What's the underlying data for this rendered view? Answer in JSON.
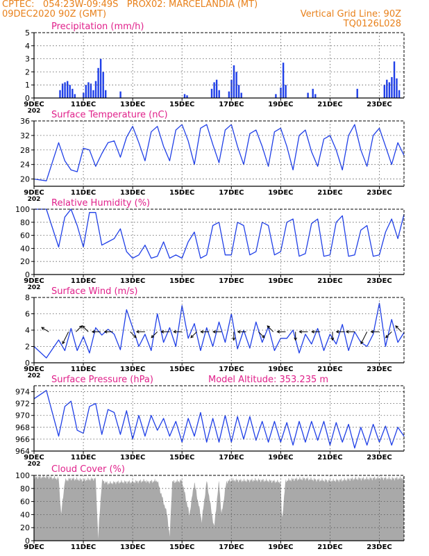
{
  "header": {
    "line1_left": "CPTEC:   054:23W-09:49S   PROX02: MARCELANDIA (MT)",
    "line2_left": "09DEC2020 90Z (GMT)",
    "line2_right": "Vertical Grid Line: 90Z",
    "line3_right": "TQ0126L028"
  },
  "colors": {
    "header": "#e8801a",
    "title": "#e0208a",
    "series": "#1f3fe8",
    "cloud": "#a9a9a9",
    "grid": "#555555",
    "arrow": "#000000"
  },
  "x_axis": {
    "day_range": [
      9,
      24
    ],
    "tick_days": [
      9,
      11,
      13,
      15,
      17,
      19,
      21,
      23
    ],
    "tick_labels": [
      "9DEC",
      "11DEC",
      "13DEC",
      "15DEC",
      "17DEC",
      "19DEC",
      "21DEC",
      "23DEC"
    ],
    "year_stub": "202"
  },
  "chart_data": [
    {
      "id": "precip",
      "type": "bar",
      "title": "Precipitation (mm/h)",
      "ylim": [
        0,
        5
      ],
      "yticks": [
        0,
        1,
        2,
        3,
        4,
        5
      ],
      "grid": true,
      "bars": [
        [
          10.05,
          0.6
        ],
        [
          10.15,
          1.1
        ],
        [
          10.25,
          1.2
        ],
        [
          10.35,
          1.3
        ],
        [
          10.45,
          1.0
        ],
        [
          10.55,
          0.7
        ],
        [
          10.65,
          0.3
        ],
        [
          11.0,
          0.4
        ],
        [
          11.1,
          1.0
        ],
        [
          11.2,
          1.2
        ],
        [
          11.3,
          1.1
        ],
        [
          11.4,
          0.6
        ],
        [
          11.5,
          1.3
        ],
        [
          11.6,
          2.3
        ],
        [
          11.7,
          3.0
        ],
        [
          11.8,
          2.0
        ],
        [
          11.9,
          0.6
        ],
        [
          12.5,
          0.5
        ],
        [
          15.1,
          0.3
        ],
        [
          15.2,
          0.2
        ],
        [
          16.2,
          0.7
        ],
        [
          16.3,
          1.2
        ],
        [
          16.4,
          1.4
        ],
        [
          16.5,
          0.6
        ],
        [
          16.9,
          0.5
        ],
        [
          17.0,
          1.4
        ],
        [
          17.1,
          2.5
        ],
        [
          17.2,
          2.0
        ],
        [
          17.3,
          1.0
        ],
        [
          17.4,
          0.4
        ],
        [
          18.8,
          0.3
        ],
        [
          19.0,
          0.8
        ],
        [
          19.1,
          2.7
        ],
        [
          19.2,
          1.0
        ],
        [
          20.1,
          0.4
        ],
        [
          20.3,
          0.7
        ],
        [
          20.4,
          0.3
        ],
        [
          22.1,
          0.7
        ],
        [
          23.2,
          1.0
        ],
        [
          23.3,
          1.4
        ],
        [
          23.4,
          1.2
        ],
        [
          23.5,
          1.6
        ],
        [
          23.6,
          2.8
        ],
        [
          23.7,
          1.5
        ],
        [
          23.8,
          0.6
        ]
      ]
    },
    {
      "id": "temp",
      "type": "line",
      "title": "Surface Temperature (nC)",
      "ylim": [
        18,
        36
      ],
      "yticks": [
        20,
        24,
        28,
        32,
        36
      ],
      "grid": true,
      "x": [
        9.0,
        9.5,
        10.0,
        10.25,
        10.5,
        10.75,
        11.0,
        11.25,
        11.5,
        11.75,
        12.0,
        12.25,
        12.5,
        12.75,
        13.0,
        13.25,
        13.5,
        13.75,
        14.0,
        14.25,
        14.5,
        14.75,
        15.0,
        15.25,
        15.5,
        15.75,
        16.0,
        16.25,
        16.5,
        16.75,
        17.0,
        17.25,
        17.5,
        17.75,
        18.0,
        18.25,
        18.5,
        18.75,
        19.0,
        19.25,
        19.5,
        19.75,
        20.0,
        20.25,
        20.5,
        20.75,
        21.0,
        21.25,
        21.5,
        21.75,
        22.0,
        22.25,
        22.5,
        22.75,
        23.0,
        23.25,
        23.5,
        23.75,
        24.0
      ],
      "values": [
        20,
        19.5,
        30,
        25,
        22.5,
        22,
        28.5,
        28,
        23.5,
        27,
        30,
        30.5,
        26,
        31.5,
        34.5,
        30,
        25,
        33,
        34.5,
        29,
        25,
        33.5,
        35,
        30.5,
        24,
        34,
        35,
        29.5,
        24.5,
        33.5,
        35,
        29,
        24,
        32.5,
        33.5,
        29,
        23.5,
        33,
        34,
        29,
        22.5,
        32,
        33.5,
        27.5,
        23.5,
        31,
        32,
        28,
        22.5,
        32,
        35,
        28,
        23.5,
        32,
        34,
        29,
        24,
        30,
        26.5
      ]
    },
    {
      "id": "rh",
      "type": "line",
      "title": "Relative Humidity (%)",
      "ylim": [
        0,
        100
      ],
      "yticks": [
        0,
        20,
        40,
        60,
        80,
        100
      ],
      "grid": true,
      "x": [
        9.0,
        9.5,
        10.0,
        10.25,
        10.5,
        10.75,
        11.0,
        11.25,
        11.5,
        11.75,
        12.0,
        12.25,
        12.5,
        12.75,
        13.0,
        13.25,
        13.5,
        13.75,
        14.0,
        14.25,
        14.5,
        14.75,
        15.0,
        15.25,
        15.5,
        15.75,
        16.0,
        16.25,
        16.5,
        16.75,
        17.0,
        17.25,
        17.5,
        17.75,
        18.0,
        18.25,
        18.5,
        18.75,
        19.0,
        19.25,
        19.5,
        19.75,
        20.0,
        20.25,
        20.5,
        20.75,
        21.0,
        21.25,
        21.5,
        21.75,
        22.0,
        22.25,
        22.5,
        22.75,
        23.0,
        23.25,
        23.5,
        23.75,
        24.0
      ],
      "values": [
        100,
        100,
        42,
        88,
        100,
        75,
        42,
        95,
        95,
        45,
        50,
        55,
        70,
        35,
        25,
        30,
        45,
        25,
        28,
        50,
        25,
        30,
        25,
        50,
        65,
        25,
        30,
        75,
        80,
        30,
        30,
        80,
        75,
        30,
        35,
        80,
        75,
        30,
        35,
        80,
        85,
        28,
        32,
        78,
        85,
        28,
        30,
        80,
        90,
        28,
        30,
        68,
        75,
        28,
        30,
        65,
        85,
        55,
        92
      ]
    },
    {
      "id": "wind",
      "type": "line",
      "title": "Surface Wind (m/s)",
      "ylim": [
        0,
        8
      ],
      "yticks": [
        0,
        2,
        4,
        6,
        8
      ],
      "grid": true,
      "x": [
        9.0,
        9.5,
        10.0,
        10.25,
        10.5,
        10.75,
        11.0,
        11.25,
        11.5,
        11.75,
        12.0,
        12.25,
        12.5,
        12.75,
        13.0,
        13.25,
        13.5,
        13.75,
        14.0,
        14.25,
        14.5,
        14.75,
        15.0,
        15.25,
        15.5,
        15.75,
        16.0,
        16.25,
        16.5,
        16.75,
        17.0,
        17.25,
        17.5,
        17.75,
        18.0,
        18.25,
        18.5,
        18.75,
        19.0,
        19.25,
        19.5,
        19.75,
        20.0,
        20.25,
        20.5,
        20.75,
        21.0,
        21.25,
        21.5,
        21.75,
        22.0,
        22.25,
        22.5,
        22.75,
        23.0,
        23.25,
        23.5,
        23.75,
        24.0
      ],
      "values": [
        2.0,
        0.6,
        2.8,
        1.5,
        4.2,
        1.5,
        3.2,
        1.2,
        4.3,
        3.4,
        4.1,
        3.5,
        1.6,
        6.5,
        4.3,
        2.0,
        3.5,
        1.5,
        6.0,
        2.5,
        4.3,
        2.0,
        7.0,
        3.0,
        4.8,
        1.5,
        4.3,
        2.0,
        5.0,
        2.5,
        6.0,
        1.7,
        4.0,
        1.8,
        5.0,
        2.5,
        4.4,
        1.5,
        3.0,
        3.0,
        4.0,
        1.2,
        3.5,
        2.3,
        4.2,
        1.5,
        3.5,
        2.3,
        4.7,
        1.5,
        3.8,
        2.5,
        2.0,
        3.5,
        7.3,
        2.0,
        5.3,
        2.5,
        3.7
      ],
      "arrows": [
        [
          9.6,
          -1,
          0.6
        ],
        [
          10.4,
          -1,
          -2
        ],
        [
          10.7,
          1,
          1
        ],
        [
          11.2,
          -1,
          1
        ],
        [
          11.7,
          -1,
          0
        ],
        [
          12.2,
          -1,
          0
        ],
        [
          12.9,
          1,
          -1
        ],
        [
          13.5,
          -1,
          0
        ],
        [
          14.0,
          -1,
          -1
        ],
        [
          14.5,
          -1,
          0
        ],
        [
          15.0,
          -1,
          0
        ],
        [
          15.6,
          -1,
          -1
        ],
        [
          16.1,
          -1,
          0
        ],
        [
          16.6,
          -1,
          0
        ],
        [
          17.1,
          0,
          -1
        ],
        [
          17.6,
          -1,
          0
        ],
        [
          18.1,
          1,
          -1
        ],
        [
          18.7,
          -1,
          1
        ],
        [
          19.2,
          -1,
          0
        ],
        [
          19.6,
          0,
          -1
        ],
        [
          20.1,
          -1,
          0
        ],
        [
          20.6,
          -1,
          0
        ],
        [
          21.1,
          0,
          -1
        ],
        [
          21.6,
          -1,
          0
        ],
        [
          22.0,
          -1,
          0
        ],
        [
          22.5,
          -1,
          -2
        ],
        [
          23.0,
          -1,
          0
        ],
        [
          23.5,
          -1,
          -1
        ],
        [
          23.9,
          -1,
          1
        ]
      ]
    },
    {
      "id": "pressure",
      "type": "line",
      "title": "Surface Pressure (hPa)",
      "subtitle": "Model Altitude: 353.235  m",
      "ylim": [
        964,
        975
      ],
      "yticks": [
        964,
        966,
        968,
        970,
        972,
        974
      ],
      "grid": true,
      "x": [
        9.0,
        9.5,
        10.0,
        10.25,
        10.5,
        10.75,
        11.0,
        11.25,
        11.5,
        11.75,
        12.0,
        12.25,
        12.5,
        12.75,
        13.0,
        13.25,
        13.5,
        13.75,
        14.0,
        14.25,
        14.5,
        14.75,
        15.0,
        15.25,
        15.5,
        15.75,
        16.0,
        16.25,
        16.5,
        16.75,
        17.0,
        17.25,
        17.5,
        17.75,
        18.0,
        18.25,
        18.5,
        18.75,
        19.0,
        19.25,
        19.5,
        19.75,
        20.0,
        20.25,
        20.5,
        20.75,
        21.0,
        21.25,
        21.5,
        21.75,
        22.0,
        22.25,
        22.5,
        22.75,
        23.0,
        23.25,
        23.5,
        23.75,
        24.0
      ],
      "values": [
        972.8,
        974.2,
        966.5,
        971.5,
        972.4,
        967.5,
        967.0,
        971.5,
        972.0,
        966.8,
        971.0,
        970.5,
        966.8,
        970.8,
        966.0,
        970.0,
        966.5,
        970.0,
        967.5,
        969.5,
        966.5,
        969.0,
        965.5,
        969.5,
        966.5,
        970.5,
        965.5,
        969.5,
        965.5,
        970.0,
        965.5,
        969.8,
        966.0,
        969.8,
        965.8,
        969.0,
        965.5,
        969.0,
        965.5,
        968.8,
        965.0,
        969.0,
        965.5,
        969.0,
        965.8,
        969.0,
        965.0,
        968.8,
        965.5,
        968.5,
        964.5,
        968.0,
        965.0,
        968.5,
        965.5,
        968.2,
        965.0,
        968.0,
        966.5
      ]
    },
    {
      "id": "cloud",
      "type": "area",
      "title": "Cloud Cover (%)",
      "ylim": [
        0,
        100
      ],
      "yticks": [
        0,
        20,
        40,
        60,
        80,
        100
      ],
      "grid": true,
      "x": [
        9.0,
        9.5,
        10.0,
        10.1,
        10.25,
        10.5,
        11.0,
        11.5,
        11.6,
        11.75,
        12.0,
        12.5,
        13.0,
        13.5,
        13.6,
        14.0,
        14.4,
        14.5,
        14.6,
        15.0,
        15.3,
        15.5,
        15.8,
        16.0,
        16.3,
        16.5,
        16.6,
        16.8,
        17.0,
        17.5,
        18.0,
        18.5,
        19.0,
        19.05,
        19.2,
        19.5,
        20.0,
        20.5,
        21.0,
        21.5,
        22.0,
        22.5,
        23.0,
        23.5,
        24.0
      ],
      "values": [
        97,
        98,
        95,
        40,
        92,
        95,
        93,
        95,
        5,
        92,
        88,
        90,
        90,
        92,
        90,
        92,
        40,
        5,
        90,
        92,
        40,
        90,
        30,
        92,
        20,
        92,
        40,
        90,
        93,
        92,
        93,
        92,
        90,
        30,
        92,
        94,
        95,
        93,
        92,
        93,
        95,
        95,
        96,
        95,
        96
      ]
    }
  ]
}
